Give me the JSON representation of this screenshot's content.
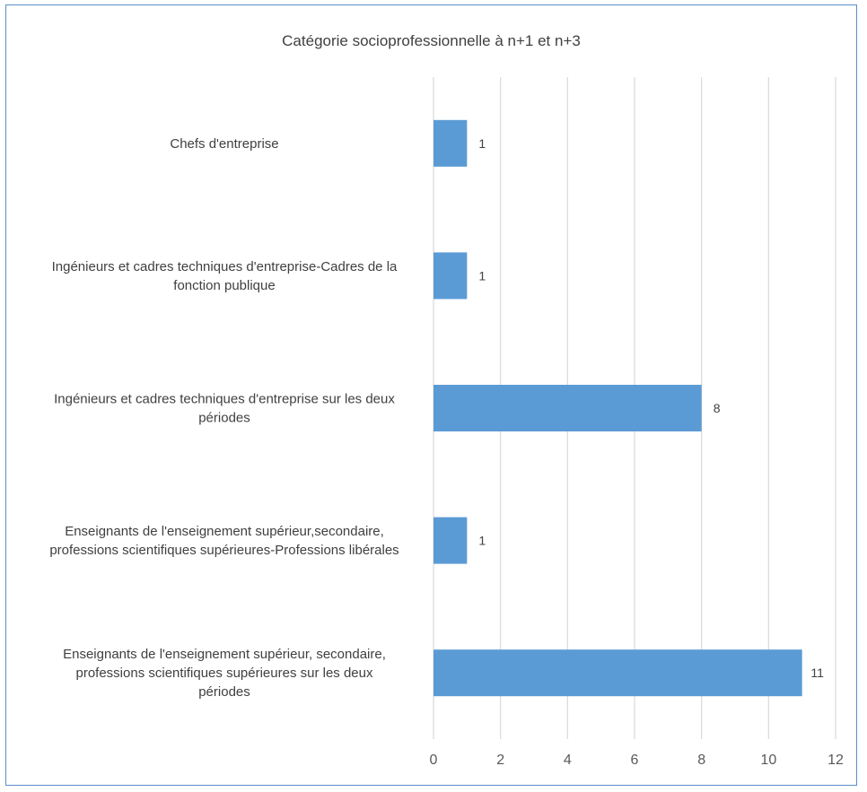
{
  "chart_data": {
    "type": "bar",
    "orientation": "horizontal",
    "title": "Catégorie socioprofessionnelle à n+1 et n+3",
    "categories": [
      [
        "Chefs d'entreprise"
      ],
      [
        "Ingénieurs et cadres techniques d'entreprise-Cadres de la",
        "fonction publique"
      ],
      [
        "Ingénieurs et cadres techniques d'entreprise sur les deux",
        "périodes"
      ],
      [
        "Enseignants de l'enseignement supérieur,secondaire,",
        "professions scientifiques supérieures-Professions libérales"
      ],
      [
        "Enseignants de l'enseignement supérieur, secondaire,",
        "professions scientifiques supérieures sur les deux",
        "périodes"
      ]
    ],
    "values": [
      1,
      1,
      8,
      1,
      11
    ],
    "xlim": [
      0,
      12
    ],
    "xticks": [
      0,
      2,
      4,
      6,
      8,
      10,
      12
    ],
    "grid": "vertical",
    "legend": "none",
    "bar_color": "#5b9bd5",
    "grid_color": "#d9d9d9",
    "border_color": "#5b8ec9"
  }
}
